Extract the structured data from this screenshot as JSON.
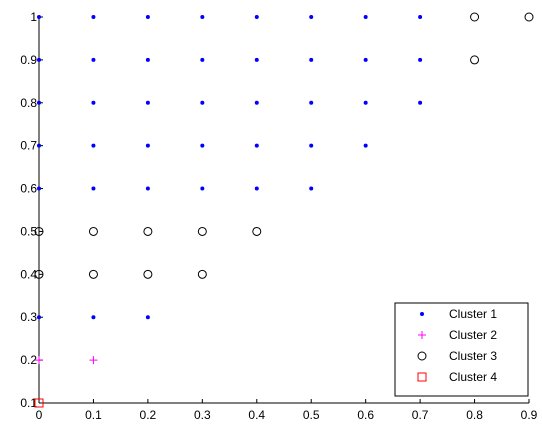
{
  "chart_data": {
    "type": "scatter",
    "title": "",
    "xlabel": "",
    "ylabel": "",
    "xlim": [
      0,
      0.9
    ],
    "ylim": [
      0.1,
      1
    ],
    "grid": false,
    "xticks": [
      "0",
      "0.1",
      "0.2",
      "0.3",
      "0.4",
      "0.5",
      "0.6",
      "0.7",
      "0.8",
      "0.9"
    ],
    "yticks": [
      "0.1",
      "0.2",
      "0.3",
      "0.4",
      "0.5",
      "0.6",
      "0.7",
      "0.8",
      "0.9",
      "1"
    ],
    "legend_position": "bottom-right",
    "series": [
      {
        "name": "Cluster 1",
        "marker": "dot",
        "color": "#0000ff",
        "points": [
          [
            0,
            1
          ],
          [
            0.1,
            1
          ],
          [
            0.2,
            1
          ],
          [
            0.3,
            1
          ],
          [
            0.4,
            1
          ],
          [
            0.5,
            1
          ],
          [
            0.6,
            1
          ],
          [
            0.7,
            1
          ],
          [
            0,
            0.9
          ],
          [
            0.1,
            0.9
          ],
          [
            0.2,
            0.9
          ],
          [
            0.3,
            0.9
          ],
          [
            0.4,
            0.9
          ],
          [
            0.5,
            0.9
          ],
          [
            0.6,
            0.9
          ],
          [
            0.7,
            0.9
          ],
          [
            0,
            0.8
          ],
          [
            0.1,
            0.8
          ],
          [
            0.2,
            0.8
          ],
          [
            0.3,
            0.8
          ],
          [
            0.4,
            0.8
          ],
          [
            0.5,
            0.8
          ],
          [
            0.6,
            0.8
          ],
          [
            0.7,
            0.8
          ],
          [
            0,
            0.7
          ],
          [
            0.1,
            0.7
          ],
          [
            0.2,
            0.7
          ],
          [
            0.3,
            0.7
          ],
          [
            0.4,
            0.7
          ],
          [
            0.5,
            0.7
          ],
          [
            0.6,
            0.7
          ],
          [
            0,
            0.6
          ],
          [
            0.1,
            0.6
          ],
          [
            0.2,
            0.6
          ],
          [
            0.3,
            0.6
          ],
          [
            0.4,
            0.6
          ],
          [
            0.5,
            0.6
          ],
          [
            0,
            0.3
          ],
          [
            0.1,
            0.3
          ],
          [
            0.2,
            0.3
          ]
        ]
      },
      {
        "name": "Cluster 2",
        "marker": "plus",
        "color": "#ff00ff",
        "points": [
          [
            0,
            0.2
          ],
          [
            0.1,
            0.2
          ]
        ]
      },
      {
        "name": "Cluster 3",
        "marker": "circle",
        "color": "#000000",
        "points": [
          [
            0.8,
            1
          ],
          [
            0.9,
            1
          ],
          [
            0.8,
            0.9
          ],
          [
            0,
            0.5
          ],
          [
            0.1,
            0.5
          ],
          [
            0.2,
            0.5
          ],
          [
            0.3,
            0.5
          ],
          [
            0.4,
            0.5
          ],
          [
            0,
            0.4
          ],
          [
            0.1,
            0.4
          ],
          [
            0.2,
            0.4
          ],
          [
            0.3,
            0.4
          ]
        ]
      },
      {
        "name": "Cluster 4",
        "marker": "square",
        "color": "#ff0000",
        "points": [
          [
            0,
            0.1
          ]
        ]
      }
    ]
  }
}
